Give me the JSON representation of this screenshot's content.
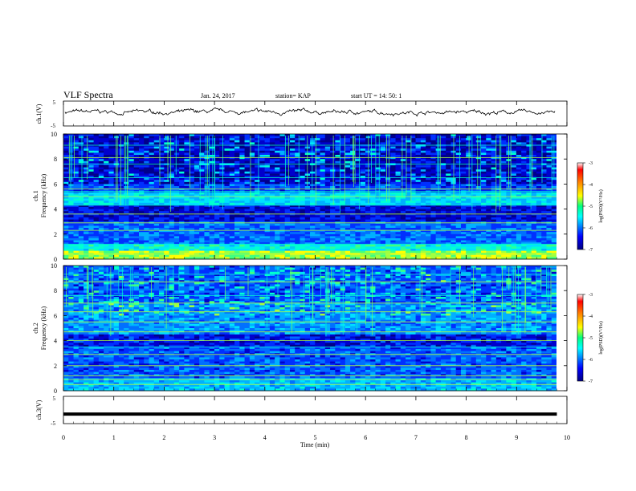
{
  "header": {
    "title": "VLF Spectra",
    "date": "Jan. 24, 2017",
    "station": "station= KAP",
    "start": "start  UT =   14: 50: 1"
  },
  "colorbar": {
    "label": "log(PSD)(V²/Hz)",
    "ticks": [
      -3,
      -4,
      -5,
      -6,
      -7
    ],
    "tick_labels": [
      "-3",
      "-4",
      "-5",
      "-6",
      "-7"
    ],
    "colors": [
      "#000080",
      "#0000ff",
      "#00ffff",
      "#00ff80",
      "#ffff00",
      "#ff8000",
      "#ff0000",
      "#ffffff"
    ]
  },
  "chart_data": [
    {
      "type": "line",
      "ylabel": "ch.1(V)",
      "ylim": [
        -5,
        5
      ],
      "ytick_labels": [
        "5",
        "-5"
      ],
      "xlim": [
        0,
        10
      ],
      "note": "waveform amplitude oscillates around ~0 V (approx. -1 to +1.5 V)"
    },
    {
      "type": "heatmap",
      "ylabel_top": "ch.1",
      "ylabel": "Frequency (kHz)",
      "ylim": [
        0,
        10
      ],
      "yticks": [
        0,
        2,
        4,
        6,
        8,
        10
      ],
      "ytick_labels": [
        "0",
        "2",
        "4",
        "6",
        "8",
        "10"
      ],
      "xlim": [
        0,
        9.8
      ],
      "color_range": [
        -7,
        -3
      ]
    },
    {
      "type": "heatmap",
      "ylabel_top": "ch.2",
      "ylabel": "Frequency (kHz)",
      "ylim": [
        0,
        10
      ],
      "yticks": [
        0,
        2,
        4,
        6,
        8,
        10
      ],
      "ytick_labels": [
        "0",
        "2",
        "4",
        "6",
        "8",
        "10"
      ],
      "xlim": [
        0,
        9.8
      ],
      "color_range": [
        -7,
        -3
      ]
    },
    {
      "type": "line",
      "ylabel": "ch.3(V)",
      "ylim": [
        -5,
        5
      ],
      "ytick_labels": [
        "5",
        "-5"
      ],
      "xlim": [
        0,
        9.8
      ],
      "x": [
        0,
        9.8
      ],
      "y": [
        -1.5,
        -1.5
      ],
      "xlabel": "Time (min)",
      "xticks": [
        0,
        1,
        2,
        3,
        4,
        5,
        6,
        7,
        8,
        9,
        10
      ],
      "xtick_labels": [
        "0",
        "1",
        "2",
        "3",
        "4",
        "5",
        "6",
        "7",
        "8",
        "9",
        "10"
      ]
    }
  ]
}
